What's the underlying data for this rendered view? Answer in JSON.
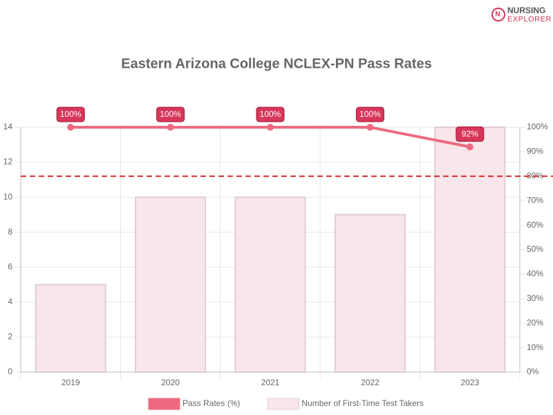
{
  "logo": {
    "line1": "NURSING",
    "line2": "EXPLORER"
  },
  "chart_data": {
    "type": "bar",
    "title": "Eastern Arizona College NCLEX-PN Pass Rates",
    "categories": [
      "2019",
      "2020",
      "2021",
      "2022",
      "2023"
    ],
    "series": [
      {
        "name": "Pass Rates (%)",
        "type": "line",
        "axis": "y2",
        "color": "#ee6a80",
        "label_color": "#d8365a",
        "values": [
          100,
          100,
          100,
          100,
          92
        ],
        "value_labels": [
          "100%",
          "100%",
          "100%",
          "100%",
          "92%"
        ]
      },
      {
        "name": "Number of First-Time Test Takers",
        "type": "bar",
        "color": "#f8e6ea",
        "border_color": "#dfcdd2",
        "values": [
          5,
          10,
          10,
          9,
          14
        ]
      }
    ],
    "ylim": [
      0,
      14
    ],
    "yticks": [
      0,
      2,
      4,
      6,
      8,
      10,
      12,
      14
    ],
    "y2lim": [
      0,
      100
    ],
    "y2ticks": [
      {
        "value": 0,
        "label": "0%"
      },
      {
        "value": 10,
        "label": "10%"
      },
      {
        "value": 20,
        "label": "20%"
      },
      {
        "value": 30,
        "label": "30%"
      },
      {
        "value": 40,
        "label": "40%"
      },
      {
        "value": 50,
        "label": "50%"
      },
      {
        "value": 60,
        "label": "60%"
      },
      {
        "value": 70,
        "label": "70%"
      },
      {
        "value": 80,
        "label": "80%"
      },
      {
        "value": 90,
        "label": "90%"
      },
      {
        "value": 100,
        "label": "100%"
      }
    ],
    "y2_reference": {
      "value": 80,
      "color": "#d62728"
    },
    "grid": true
  }
}
